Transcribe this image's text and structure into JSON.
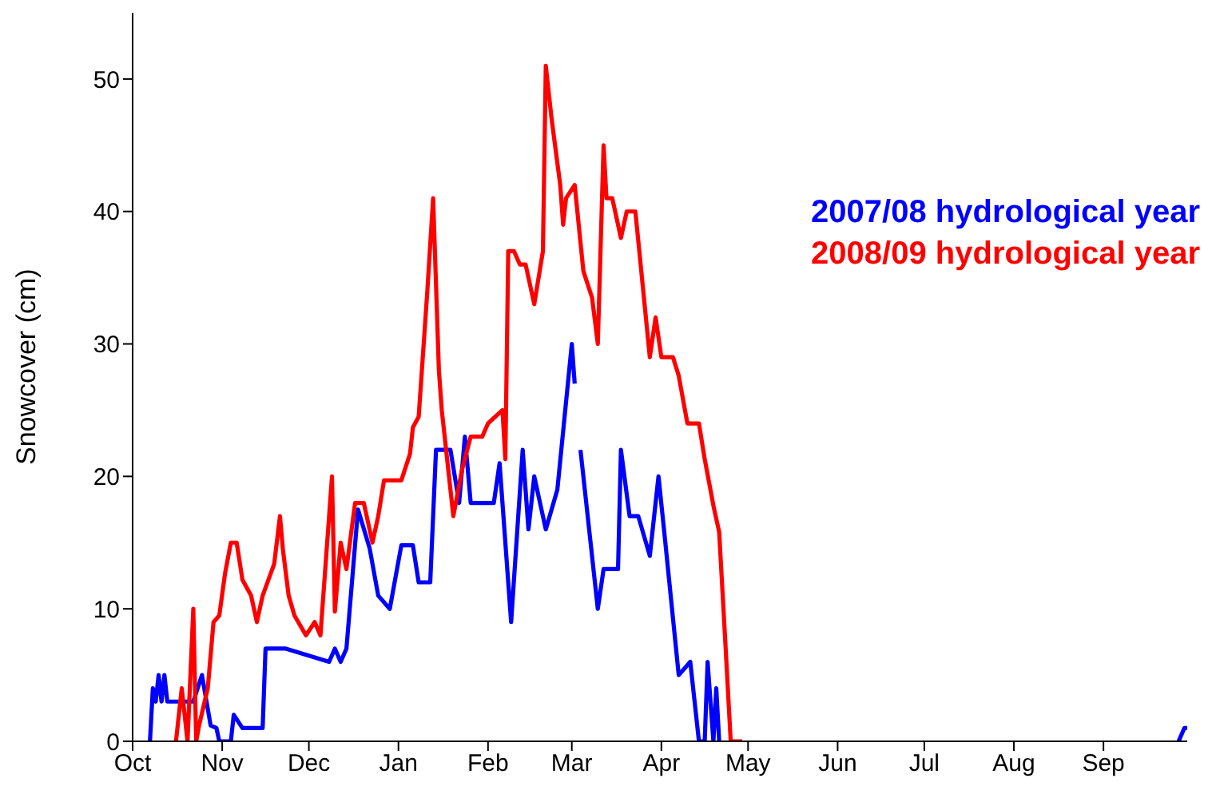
{
  "chart_data": {
    "type": "line",
    "ylabel": "Snowcover (cm)",
    "xlim": [
      "2007-10-01",
      "2008-09-30"
    ],
    "ylim": [
      0,
      55
    ],
    "xticks": [
      {
        "value": "2007-10-01",
        "label": "Oct"
      },
      {
        "value": "2007-11-01",
        "label": "Nov"
      },
      {
        "value": "2007-12-01",
        "label": "Dec"
      },
      {
        "value": "2008-01-01",
        "label": "Jan"
      },
      {
        "value": "2008-02-01",
        "label": "Feb"
      },
      {
        "value": "2008-03-01",
        "label": "Mar"
      },
      {
        "value": "2008-04-01",
        "label": "Apr"
      },
      {
        "value": "2008-05-01",
        "label": "May"
      },
      {
        "value": "2008-06-01",
        "label": "Jun"
      },
      {
        "value": "2008-07-01",
        "label": "Jul"
      },
      {
        "value": "2008-08-01",
        "label": "Aug"
      },
      {
        "value": "2008-09-01",
        "label": "Sep"
      }
    ],
    "yticks": [
      0,
      10,
      20,
      30,
      40,
      50
    ],
    "legend": "top right",
    "marker": "none",
    "line_style": "solid",
    "series": [
      {
        "name": "2007/08 hydrological year",
        "color": "#0000ff",
        "x": [
          "2007-10-07",
          "2007-10-08",
          "2007-10-09",
          "2007-10-10",
          "2007-10-11",
          "2007-10-12",
          "2007-10-13",
          "2007-10-22",
          "2007-10-25",
          "2007-10-28",
          "2007-10-30",
          "2007-10-31",
          "2007-11-04",
          "2007-11-05",
          "2007-11-08",
          "2007-11-15",
          "2007-11-16",
          "2007-11-23",
          "2007-12-08",
          "2007-12-10",
          "2007-12-12",
          "2007-12-14",
          "2007-12-18",
          "2007-12-22",
          "2007-12-25",
          "2007-12-29",
          "2008-01-02",
          "2008-01-06",
          "2008-01-08",
          "2008-01-12",
          "2008-01-14",
          "2008-01-19",
          "2008-01-22",
          "2008-01-24",
          "2008-01-26",
          "2008-02-03",
          "2008-02-05",
          "2008-02-09",
          "2008-02-13",
          "2008-02-15",
          "2008-02-17",
          "2008-02-21",
          "2008-02-25",
          "2008-03-01",
          "2008-03-02",
          "2008-03-03",
          "2008-03-04",
          "2008-03-10",
          "2008-03-12",
          "2008-03-17",
          "2008-03-18",
          "2008-03-21",
          "2008-03-24",
          "2008-03-28",
          "2008-03-31",
          "2008-04-02",
          "2008-04-07",
          "2008-04-11",
          "2008-04-14",
          "2008-04-16",
          "2008-04-17",
          "2008-04-19",
          "2008-04-20",
          "2008-04-21",
          "2008-04-22",
          "2008-09-27",
          "2008-09-29",
          "2008-09-30"
        ],
        "values": [
          0,
          4,
          3,
          5,
          3,
          5,
          3,
          3,
          5,
          1.2,
          1,
          0,
          0,
          2,
          1,
          1,
          7,
          7,
          6,
          7,
          6,
          7,
          17.5,
          14.6,
          11,
          10,
          14.8,
          14.8,
          12,
          12,
          22,
          22,
          18,
          23,
          18,
          18,
          21,
          9,
          22,
          16,
          20,
          16,
          19,
          30,
          27,
          null,
          22,
          10,
          13,
          13,
          22,
          17,
          17,
          14,
          20,
          15.8,
          5,
          6,
          0,
          0,
          6,
          0,
          4,
          0,
          null,
          0,
          1,
          1
        ]
      },
      {
        "name": "2008/09 hydrological year",
        "color": "#ff0000",
        "x": [
          "2007-10-16",
          "2007-10-18",
          "2007-10-20",
          "2007-10-22",
          "2007-10-23",
          "2007-10-24",
          "2007-10-27",
          "2007-10-29",
          "2007-10-31",
          "2007-11-02",
          "2007-11-04",
          "2007-11-06",
          "2007-11-08",
          "2007-11-11",
          "2007-11-13",
          "2007-11-15",
          "2007-11-19",
          "2007-11-21",
          "2007-11-22",
          "2007-11-24",
          "2007-11-26",
          "2007-11-30",
          "2007-12-03",
          "2007-12-05",
          "2007-12-09",
          "2007-12-10",
          "2007-12-12",
          "2007-12-14",
          "2007-12-17",
          "2007-12-20",
          "2007-12-23",
          "2007-12-25",
          "2007-12-27",
          "2008-01-02",
          "2008-01-05",
          "2008-01-06",
          "2008-01-08",
          "2008-01-11",
          "2008-01-13",
          "2008-01-15",
          "2008-01-16",
          "2008-01-20",
          "2008-01-23",
          "2008-01-26",
          "2008-01-30",
          "2008-02-01",
          "2008-02-06",
          "2008-02-07",
          "2008-02-08",
          "2008-02-10",
          "2008-02-12",
          "2008-02-14",
          "2008-02-17",
          "2008-02-20",
          "2008-02-21",
          "2008-02-23",
          "2008-02-26",
          "2008-02-27",
          "2008-02-28",
          "2008-03-02",
          "2008-03-05",
          "2008-03-08",
          "2008-03-10",
          "2008-03-12",
          "2008-03-13",
          "2008-03-15",
          "2008-03-18",
          "2008-03-20",
          "2008-03-23",
          "2008-03-28",
          "2008-03-30",
          "2008-04-01",
          "2008-04-05",
          "2008-04-07",
          "2008-04-10",
          "2008-04-14",
          "2008-04-16",
          "2008-04-19",
          "2008-04-21",
          "2008-04-23",
          "2008-04-25",
          "2008-04-29"
        ],
        "values": [
          0,
          4,
          0,
          10,
          0,
          1.2,
          4,
          9,
          9.5,
          12.7,
          15,
          15,
          12.2,
          11,
          9,
          11,
          13.4,
          17,
          14.5,
          11,
          9.5,
          8,
          9,
          8,
          20,
          9.8,
          15,
          13,
          18,
          18,
          15,
          17,
          19.7,
          19.7,
          21.7,
          23.7,
          24.5,
          34,
          41,
          28,
          25,
          17,
          20.5,
          23,
          23,
          24,
          25,
          21.3,
          37,
          37,
          36,
          36,
          33,
          37,
          51,
          47,
          42,
          39,
          41,
          42,
          35.5,
          33.5,
          30,
          45,
          41,
          41,
          38,
          40,
          40,
          29,
          32,
          29,
          29,
          27.6,
          24,
          24,
          21.3,
          17.8,
          15.8,
          8,
          0,
          0
        ]
      }
    ]
  }
}
